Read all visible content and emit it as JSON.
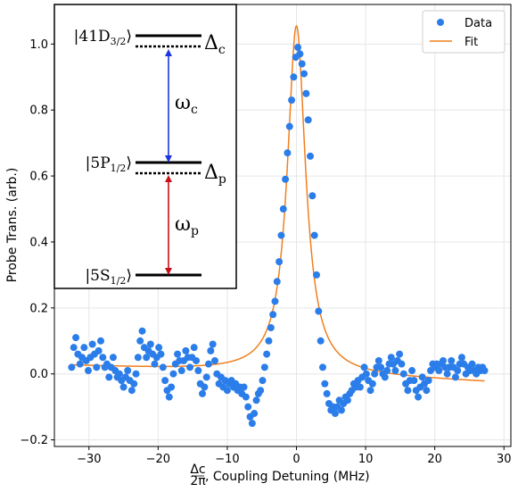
{
  "chart_data": {
    "type": "scatter",
    "xlabel_fraction_num": "Δc",
    "xlabel_fraction_den": "2π",
    "xlabel_text": ", Coupling Detuning (MHz)",
    "ylabel": "Probe Trans. (arb.)",
    "xlim": [
      -35,
      31
    ],
    "ylim": [
      -0.22,
      1.12
    ],
    "xticks": [
      -30,
      -20,
      -10,
      0,
      10,
      20,
      30
    ],
    "xtick_labels": [
      "−30",
      "−20",
      "−10",
      "0",
      "10",
      "20",
      "30"
    ],
    "yticks": [
      -0.2,
      0.0,
      0.2,
      0.4,
      0.6,
      0.8,
      1.0
    ],
    "ytick_labels": [
      "−0.2",
      "0.0",
      "0.2",
      "0.4",
      "0.6",
      "0.8",
      "1.0"
    ],
    "grid": true,
    "legend_position": "top-right",
    "series": [
      {
        "name": "Data",
        "kind": "scatter",
        "color": "#2b7de9",
        "points": [
          [
            -32.5,
            0.02
          ],
          [
            -32.2,
            0.08
          ],
          [
            -31.9,
            0.11
          ],
          [
            -31.6,
            0.06
          ],
          [
            -31.3,
            0.03
          ],
          [
            -31.0,
            0.05
          ],
          [
            -30.7,
            0.08
          ],
          [
            -30.4,
            0.04
          ],
          [
            -30.1,
            0.01
          ],
          [
            -29.8,
            0.05
          ],
          [
            -29.5,
            0.09
          ],
          [
            -29.2,
            0.06
          ],
          [
            -28.9,
            0.02
          ],
          [
            -28.6,
            0.07
          ],
          [
            -28.3,
            0.1
          ],
          [
            -28.0,
            0.05
          ],
          [
            -27.7,
            0.02
          ],
          [
            -27.4,
            0.03
          ],
          [
            -27.1,
            -0.01
          ],
          [
            -26.8,
            0.02
          ],
          [
            -26.5,
            0.05
          ],
          [
            -26.2,
            0.01
          ],
          [
            -25.9,
            -0.01
          ],
          [
            -25.6,
            0.0
          ],
          [
            -25.3,
            -0.02
          ],
          [
            -25.0,
            -0.04
          ],
          [
            -24.7,
            -0.01
          ],
          [
            -24.4,
            0.01
          ],
          [
            -24.1,
            -0.02
          ],
          [
            -23.8,
            -0.05
          ],
          [
            -23.5,
            -0.03
          ],
          [
            -23.2,
            0.0
          ],
          [
            -22.9,
            0.05
          ],
          [
            -22.6,
            0.1
          ],
          [
            -22.3,
            0.13
          ],
          [
            -22.0,
            0.08
          ],
          [
            -21.7,
            0.05
          ],
          [
            -21.4,
            0.07
          ],
          [
            -21.1,
            0.09
          ],
          [
            -20.8,
            0.06
          ],
          [
            -20.5,
            0.03
          ],
          [
            -20.2,
            0.05
          ],
          [
            -19.9,
            0.08
          ],
          [
            -19.6,
            0.06
          ],
          [
            -19.3,
            0.02
          ],
          [
            -19.0,
            -0.02
          ],
          [
            -18.7,
            -0.05
          ],
          [
            -18.4,
            -0.07
          ],
          [
            -18.1,
            -0.04
          ],
          [
            -17.8,
            0.0
          ],
          [
            -17.5,
            0.03
          ],
          [
            -17.2,
            0.06
          ],
          [
            -16.9,
            0.04
          ],
          [
            -16.6,
            0.01
          ],
          [
            -16.3,
            0.04
          ],
          [
            -16.0,
            0.07
          ],
          [
            -15.7,
            0.05
          ],
          [
            -15.4,
            0.02
          ],
          [
            -15.1,
            0.05
          ],
          [
            -14.8,
            0.08
          ],
          [
            -14.5,
            0.04
          ],
          [
            -14.2,
            0.01
          ],
          [
            -13.9,
            -0.03
          ],
          [
            -13.6,
            -0.06
          ],
          [
            -13.3,
            -0.04
          ],
          [
            -13.0,
            -0.01
          ],
          [
            -12.7,
            0.03
          ],
          [
            -12.4,
            0.07
          ],
          [
            -12.1,
            0.09
          ],
          [
            -11.8,
            0.04
          ],
          [
            -11.5,
            0.0
          ],
          [
            -11.2,
            -0.03
          ],
          [
            -10.9,
            -0.01
          ],
          [
            -10.6,
            -0.04
          ],
          [
            -10.3,
            -0.02
          ],
          [
            -10.0,
            -0.05
          ],
          [
            -9.7,
            -0.03
          ],
          [
            -9.4,
            -0.02
          ],
          [
            -9.1,
            -0.04
          ],
          [
            -8.8,
            -0.03
          ],
          [
            -8.5,
            -0.05
          ],
          [
            -8.2,
            -0.04
          ],
          [
            -7.9,
            -0.06
          ],
          [
            -7.6,
            -0.04
          ],
          [
            -7.3,
            -0.07
          ],
          [
            -7.0,
            -0.1
          ],
          [
            -6.7,
            -0.13
          ],
          [
            -6.4,
            -0.15
          ],
          [
            -6.1,
            -0.12
          ],
          [
            -5.8,
            -0.08
          ],
          [
            -5.5,
            -0.06
          ],
          [
            -5.2,
            -0.05
          ],
          [
            -4.9,
            -0.02
          ],
          [
            -4.6,
            0.02
          ],
          [
            -4.3,
            0.06
          ],
          [
            -4.0,
            0.1
          ],
          [
            -3.7,
            0.14
          ],
          [
            -3.4,
            0.18
          ],
          [
            -3.1,
            0.22
          ],
          [
            -2.8,
            0.28
          ],
          [
            -2.5,
            0.34
          ],
          [
            -2.2,
            0.42
          ],
          [
            -1.9,
            0.5
          ],
          [
            -1.6,
            0.59
          ],
          [
            -1.3,
            0.67
          ],
          [
            -1.0,
            0.75
          ],
          [
            -0.7,
            0.83
          ],
          [
            -0.4,
            0.9
          ],
          [
            -0.1,
            0.96
          ],
          [
            0.2,
            0.99
          ],
          [
            0.5,
            0.97
          ],
          [
            0.8,
            0.94
          ],
          [
            1.1,
            0.91
          ],
          [
            1.4,
            0.85
          ],
          [
            1.7,
            0.77
          ],
          [
            2.0,
            0.66
          ],
          [
            2.3,
            0.54
          ],
          [
            2.6,
            0.42
          ],
          [
            2.9,
            0.3
          ],
          [
            3.2,
            0.19
          ],
          [
            3.5,
            0.1
          ],
          [
            3.8,
            0.02
          ],
          [
            4.1,
            -0.03
          ],
          [
            4.4,
            -0.06
          ],
          [
            4.7,
            -0.09
          ],
          [
            5.0,
            -0.11
          ],
          [
            5.3,
            -0.1
          ],
          [
            5.6,
            -0.12
          ],
          [
            5.9,
            -0.1
          ],
          [
            6.2,
            -0.08
          ],
          [
            6.5,
            -0.11
          ],
          [
            6.8,
            -0.09
          ],
          [
            7.1,
            -0.07
          ],
          [
            7.4,
            -0.08
          ],
          [
            7.7,
            -0.06
          ],
          [
            8.0,
            -0.05
          ],
          [
            8.3,
            -0.03
          ],
          [
            8.6,
            -0.04
          ],
          [
            8.9,
            -0.02
          ],
          [
            9.2,
            -0.04
          ],
          [
            9.5,
            -0.01
          ],
          [
            9.8,
            0.02
          ],
          [
            10.1,
            0.0
          ],
          [
            10.4,
            -0.02
          ],
          [
            10.7,
            -0.05
          ],
          [
            11.0,
            -0.03
          ],
          [
            11.3,
            0.0
          ],
          [
            11.6,
            0.02
          ],
          [
            11.9,
            0.04
          ],
          [
            12.2,
            0.02
          ],
          [
            12.5,
            0.0
          ],
          [
            12.8,
            -0.01
          ],
          [
            13.1,
            0.01
          ],
          [
            13.4,
            0.03
          ],
          [
            13.7,
            0.05
          ],
          [
            14.0,
            0.03
          ],
          [
            14.3,
            0.01
          ],
          [
            14.6,
            0.04
          ],
          [
            14.9,
            0.06
          ],
          [
            15.2,
            0.03
          ],
          [
            15.5,
            0.0
          ],
          [
            15.8,
            -0.03
          ],
          [
            16.1,
            -0.05
          ],
          [
            16.4,
            -0.02
          ],
          [
            16.7,
            0.01
          ],
          [
            17.0,
            -0.02
          ],
          [
            17.3,
            -0.05
          ],
          [
            17.6,
            -0.07
          ],
          [
            17.9,
            -0.04
          ],
          [
            18.2,
            -0.01
          ],
          [
            18.5,
            -0.03
          ],
          [
            18.8,
            -0.05
          ],
          [
            19.1,
            -0.02
          ],
          [
            19.4,
            0.01
          ],
          [
            19.7,
            0.03
          ],
          [
            20.0,
            0.02
          ],
          [
            20.3,
            0.03
          ],
          [
            20.6,
            0.01
          ],
          [
            20.9,
            0.03
          ],
          [
            21.2,
            0.04
          ],
          [
            21.5,
            0.02
          ],
          [
            21.8,
            0.0
          ],
          [
            22.1,
            0.02
          ],
          [
            22.4,
            0.04
          ],
          [
            22.7,
            0.02
          ],
          [
            23.0,
            -0.01
          ],
          [
            23.3,
            0.01
          ],
          [
            23.6,
            0.03
          ],
          [
            23.9,
            0.05
          ],
          [
            24.2,
            0.03
          ],
          [
            24.5,
            0.0
          ],
          [
            24.8,
            0.02
          ],
          [
            25.1,
            0.01
          ],
          [
            25.4,
            0.03
          ],
          [
            25.7,
            0.01
          ],
          [
            26.0,
            0.0
          ],
          [
            26.3,
            0.02
          ],
          [
            26.6,
            0.01
          ],
          [
            26.9,
            0.02
          ],
          [
            27.2,
            0.01
          ]
        ]
      },
      {
        "name": "Fit",
        "kind": "line",
        "color": "#f07f1e",
        "baseline_x": [
          -32.5,
          -5,
          5,
          27.2
        ],
        "baseline_y": [
          0.025,
          0.005,
          -0.005,
          -0.025
        ],
        "peak_center": 0,
        "peak_height": 1.055,
        "peak_halfwidth": 1.6
      }
    ],
    "inset": {
      "levels": [
        {
          "label": "|41D",
          "sub": "3/2",
          "suffix": "⟩",
          "detuning": "Δ",
          "detuning_sub": "c"
        },
        {
          "label": "|5P",
          "sub": "1/2",
          "suffix": "⟩",
          "detuning": "Δ",
          "detuning_sub": "p"
        },
        {
          "label": "|5S",
          "sub": "1/2",
          "suffix": "⟩"
        }
      ],
      "coupling_label": "ω",
      "coupling_sub": "c",
      "coupling_color": "#1c35e0",
      "probe_label": "ω",
      "probe_sub": "p",
      "probe_color": "#c8101a"
    }
  }
}
